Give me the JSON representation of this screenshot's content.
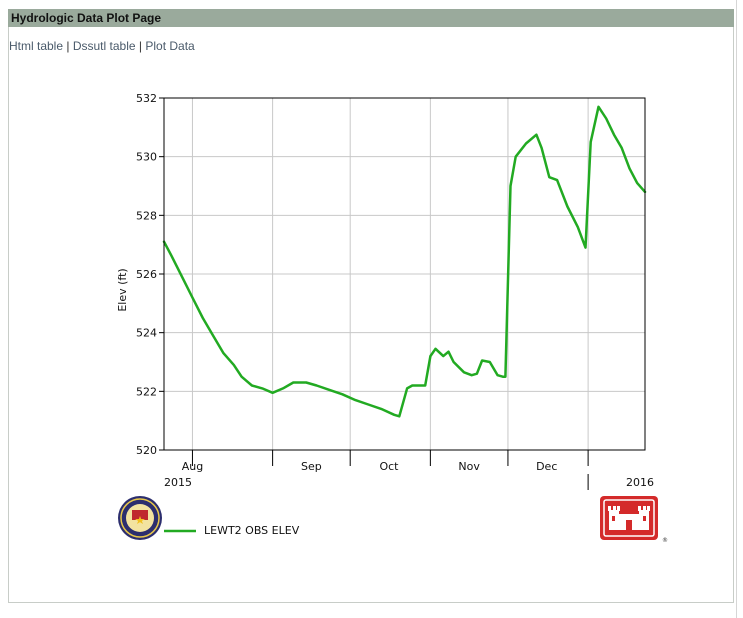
{
  "page": {
    "title": "Hydrologic Data Plot Page",
    "links": [
      {
        "label": "Html table"
      },
      {
        "label": "Dssutl table"
      },
      {
        "label": "Plot Data"
      }
    ],
    "link_separator": "|"
  },
  "chart_data": {
    "type": "line",
    "title": "",
    "xlabel": "",
    "ylabel": "Elev (ft)",
    "ylim": [
      520,
      532
    ],
    "yticks": [
      520,
      522,
      524,
      526,
      528,
      530,
      532
    ],
    "xlim": [
      "2015-07-21",
      "2016-01-23"
    ],
    "x_month_boundaries": [
      "2015-08-01",
      "2015-09-01",
      "2015-10-01",
      "2015-11-01",
      "2015-12-01",
      "2016-01-01"
    ],
    "x_month_labels": [
      {
        "label": "Aug",
        "center": "2015-08-01"
      },
      {
        "label": "Sep",
        "center": "2015-09-16"
      },
      {
        "label": "Oct",
        "center": "2015-10-16"
      },
      {
        "label": "Nov",
        "center": "2015-11-16"
      },
      {
        "label": "Dec",
        "center": "2015-12-16"
      }
    ],
    "x_year_labels": [
      {
        "label": "2015",
        "at": "2015-07-21"
      },
      {
        "label": "2016",
        "at": "2016-01-23"
      }
    ],
    "grid": true,
    "line_color": "#22aa22",
    "legend_placement": "bottom-left",
    "series": [
      {
        "name": "LEWT2 OBS ELEV",
        "points": [
          [
            "2015-07-21",
            527.1
          ],
          [
            "2015-07-24",
            526.6
          ],
          [
            "2015-07-28",
            525.9
          ],
          [
            "2015-08-01",
            525.2
          ],
          [
            "2015-08-05",
            524.5
          ],
          [
            "2015-08-09",
            523.9
          ],
          [
            "2015-08-13",
            523.3
          ],
          [
            "2015-08-17",
            522.9
          ],
          [
            "2015-08-20",
            522.5
          ],
          [
            "2015-08-24",
            522.2
          ],
          [
            "2015-08-28",
            522.1
          ],
          [
            "2015-09-01",
            521.95
          ],
          [
            "2015-09-05",
            522.1
          ],
          [
            "2015-09-09",
            522.3
          ],
          [
            "2015-09-14",
            522.3
          ],
          [
            "2015-09-18",
            522.2
          ],
          [
            "2015-09-23",
            522.05
          ],
          [
            "2015-09-28",
            521.9
          ],
          [
            "2015-10-03",
            521.7
          ],
          [
            "2015-10-08",
            521.55
          ],
          [
            "2015-10-13",
            521.4
          ],
          [
            "2015-10-18",
            521.2
          ],
          [
            "2015-10-20",
            521.15
          ],
          [
            "2015-10-23",
            522.1
          ],
          [
            "2015-10-25",
            522.2
          ],
          [
            "2015-10-30",
            522.2
          ],
          [
            "2015-11-01",
            523.2
          ],
          [
            "2015-11-03",
            523.45
          ],
          [
            "2015-11-06",
            523.2
          ],
          [
            "2015-11-08",
            523.35
          ],
          [
            "2015-11-10",
            523.0
          ],
          [
            "2015-11-14",
            522.65
          ],
          [
            "2015-11-17",
            522.55
          ],
          [
            "2015-11-19",
            522.6
          ],
          [
            "2015-11-21",
            523.05
          ],
          [
            "2015-11-24",
            523.0
          ],
          [
            "2015-11-27",
            522.55
          ],
          [
            "2015-11-29",
            522.5
          ],
          [
            "2015-11-30",
            522.5
          ],
          [
            "2015-12-02",
            529.0
          ],
          [
            "2015-12-04",
            530.0
          ],
          [
            "2015-12-08",
            530.45
          ],
          [
            "2015-12-12",
            530.75
          ],
          [
            "2015-12-14",
            530.3
          ],
          [
            "2015-12-17",
            529.3
          ],
          [
            "2015-12-20",
            529.2
          ],
          [
            "2015-12-24",
            528.3
          ],
          [
            "2015-12-28",
            527.6
          ],
          [
            "2015-12-31",
            526.9
          ],
          [
            "2016-01-02",
            530.5
          ],
          [
            "2016-01-05",
            531.7
          ],
          [
            "2016-01-08",
            531.3
          ],
          [
            "2016-01-11",
            530.75
          ],
          [
            "2016-01-14",
            530.3
          ],
          [
            "2016-01-17",
            529.6
          ],
          [
            "2016-01-20",
            529.1
          ],
          [
            "2016-01-23",
            528.8
          ]
        ]
      }
    ]
  }
}
